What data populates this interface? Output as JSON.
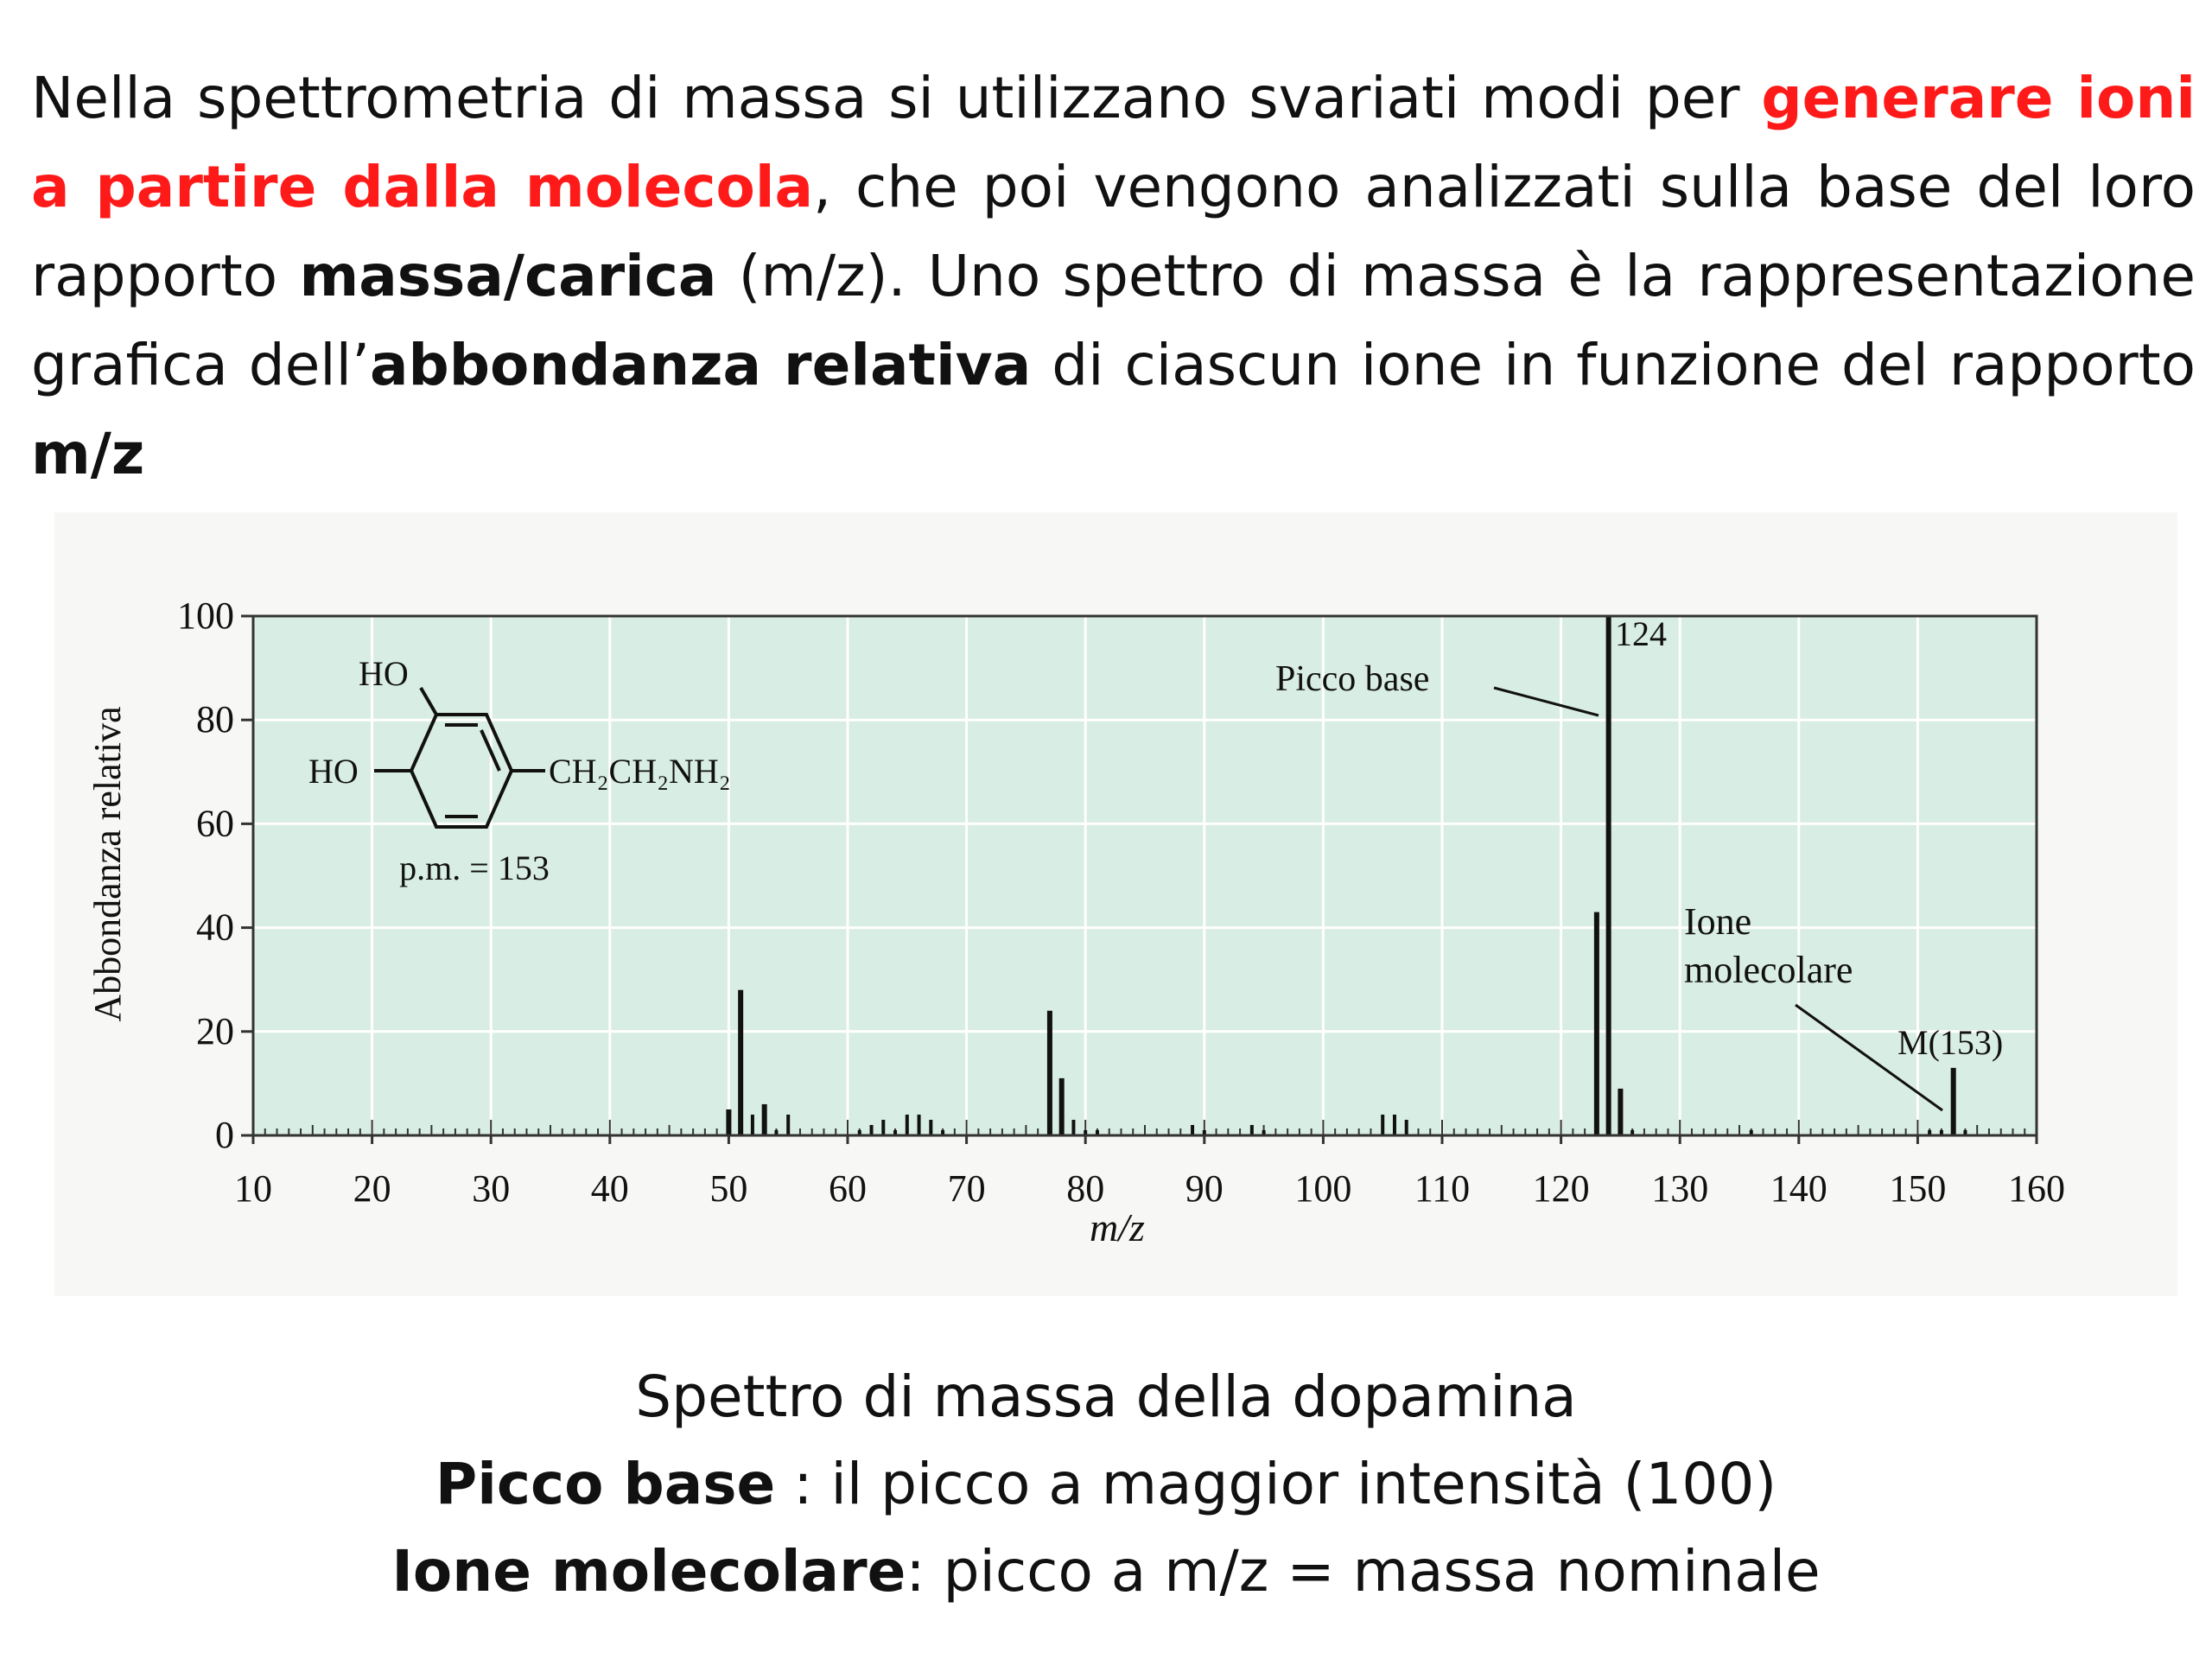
{
  "intro": {
    "part1": "Nella spettrometria di massa si utilizzano svariati modi per ",
    "highlight": "generare ioni a partire dalla molecola",
    "part2": ", che poi vengono analizzati sulla base del loro rapporto ",
    "bold1": "massa/carica",
    "part3": " (m/z). Uno spettro di massa è la rappresentazione grafica dell’",
    "bold2": "abbondanza relativa",
    "part4": " di ciascun ione in funzione del rapporto ",
    "bold3": "m/z"
  },
  "chart_data": {
    "type": "bar",
    "title": "",
    "xlabel": "m/z",
    "ylabel": "Abbondanza relativa",
    "xlim": [
      10,
      160
    ],
    "ylim": [
      0,
      100
    ],
    "xticks": [
      10,
      20,
      30,
      40,
      50,
      60,
      70,
      80,
      90,
      100,
      110,
      120,
      130,
      140,
      150,
      160
    ],
    "yticks": [
      0,
      20,
      40,
      60,
      80,
      100
    ],
    "grid": true,
    "background_color": "#d8ede3",
    "bar_color": "#111111",
    "series": [
      {
        "x": [
          50,
          51,
          52,
          53,
          54,
          55,
          61,
          62,
          63,
          64,
          65,
          66,
          67,
          68,
          77,
          78,
          79,
          80,
          81,
          89,
          90,
          94,
          95,
          105,
          106,
          107,
          123,
          124,
          125,
          126,
          136,
          151,
          152,
          153,
          154
        ],
        "values": [
          5,
          28,
          4,
          6,
          1,
          4,
          1,
          2,
          3,
          1,
          4,
          4,
          3,
          1,
          24,
          11,
          3,
          1,
          1,
          2,
          1,
          2,
          1,
          4,
          4,
          3,
          43,
          100,
          9,
          1,
          1,
          1,
          1,
          13,
          1
        ]
      }
    ],
    "annotations": [
      {
        "text": "124",
        "x": 124
      },
      {
        "text": "Picco base",
        "target_x": 124
      },
      {
        "text_lines": [
          "Ione",
          "molecolare"
        ]
      },
      {
        "text": "M(153)",
        "target_x": 153
      }
    ],
    "structure": {
      "substituent_top": "HO",
      "substituent_left": "HO",
      "side_chain": "CH₂CH₂NH₂",
      "molecular_weight": "p.m. = 153"
    }
  },
  "caption": {
    "line1": "Spettro di massa della dopamina",
    "line2_bold": "Picco base",
    "line2_rest": " : il picco a maggior intensità (100)",
    "line3_bold": "Ione molecolare",
    "line3_rest": ": picco a m/z = massa nominale"
  }
}
